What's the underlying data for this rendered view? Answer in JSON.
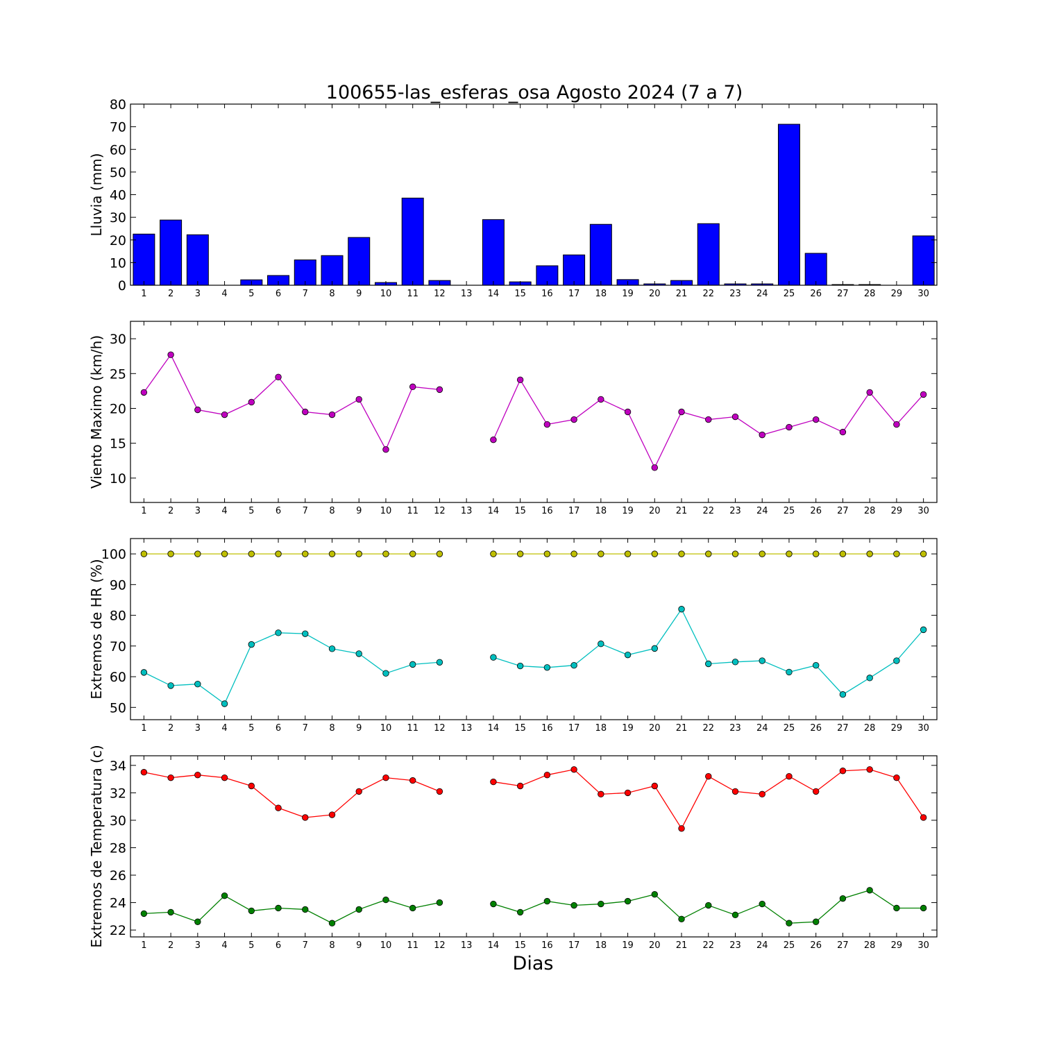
{
  "figure": {
    "title": "100655-las_esferas_osa Agosto 2024  (7 a 7)",
    "xlabel": "Dias"
  },
  "chart_data": [
    {
      "type": "bar",
      "ylabel": "Lluvia (mm)",
      "ylim": [
        0,
        80
      ],
      "yticks": [
        0,
        10,
        20,
        30,
        40,
        50,
        60,
        70,
        80
      ],
      "categories": [
        "1",
        "2",
        "3",
        "4",
        "5",
        "6",
        "7",
        "8",
        "9",
        "10",
        "11",
        "12",
        "13",
        "14",
        "15",
        "16",
        "17",
        "18",
        "19",
        "20",
        "21",
        "22",
        "23",
        "24",
        "25",
        "26",
        "27",
        "28",
        "29",
        "30"
      ],
      "values": [
        22.6,
        28.8,
        22.3,
        0,
        2.4,
        4.3,
        11.2,
        13.1,
        21.1,
        1.2,
        38.5,
        2.1,
        0,
        29.0,
        1.5,
        8.6,
        13.4,
        26.9,
        2.5,
        0.6,
        2.1,
        27.2,
        0.6,
        0.6,
        71.1,
        14.1,
        0.3,
        0.3,
        0,
        21.8
      ],
      "color": "#0000ff",
      "grid": false
    },
    {
      "type": "line",
      "ylabel": "Viento Maximo (km/h)",
      "ylim": [
        6.5,
        32.5
      ],
      "yticks": [
        10,
        15,
        20,
        25,
        30
      ],
      "x": [
        1,
        2,
        3,
        4,
        5,
        6,
        7,
        8,
        9,
        10,
        11,
        12,
        13,
        14,
        15,
        16,
        17,
        18,
        19,
        20,
        21,
        22,
        23,
        24,
        25,
        26,
        27,
        28,
        29,
        30
      ],
      "series": [
        {
          "color": "#bf00bf",
          "values": [
            22.3,
            27.7,
            19.8,
            19.1,
            20.9,
            24.5,
            19.5,
            19.1,
            21.3,
            14.1,
            23.1,
            22.7,
            null,
            15.5,
            24.1,
            17.7,
            18.4,
            21.3,
            19.5,
            11.5,
            19.5,
            18.4,
            18.8,
            16.2,
            17.3,
            18.4,
            16.6,
            22.3,
            17.7,
            22.0
          ]
        }
      ],
      "grid": false
    },
    {
      "type": "line",
      "ylabel": "Extremos de HR (%)",
      "ylim": [
        46,
        105
      ],
      "yticks": [
        50,
        60,
        70,
        80,
        90,
        100
      ],
      "x": [
        1,
        2,
        3,
        4,
        5,
        6,
        7,
        8,
        9,
        10,
        11,
        12,
        13,
        14,
        15,
        16,
        17,
        18,
        19,
        20,
        21,
        22,
        23,
        24,
        25,
        26,
        27,
        28,
        29,
        30
      ],
      "series": [
        {
          "color": "#bfbf00",
          "values": [
            100,
            100,
            100,
            100,
            100,
            100,
            100,
            100,
            100,
            100,
            100,
            100,
            null,
            100,
            100,
            100,
            100,
            100,
            100,
            100,
            100,
            100,
            100,
            100,
            100,
            100,
            100,
            100,
            100,
            100
          ]
        },
        {
          "color": "#00bfbf",
          "values": [
            61.4,
            57.1,
            57.6,
            51.2,
            70.5,
            74.3,
            74.0,
            69.1,
            67.5,
            61.1,
            64.0,
            64.7,
            null,
            66.3,
            63.5,
            63.0,
            63.7,
            70.7,
            67.1,
            69.2,
            82.0,
            64.2,
            64.8,
            65.2,
            61.5,
            63.7,
            54.2,
            59.6,
            65.2,
            75.3
          ]
        }
      ],
      "grid": false
    },
    {
      "type": "line",
      "ylabel": "Extremos de Temperatura (c)",
      "ylim": [
        21.5,
        34.7
      ],
      "yticks": [
        22,
        24,
        26,
        28,
        30,
        32,
        34
      ],
      "x": [
        1,
        2,
        3,
        4,
        5,
        6,
        7,
        8,
        9,
        10,
        11,
        12,
        13,
        14,
        15,
        16,
        17,
        18,
        19,
        20,
        21,
        22,
        23,
        24,
        25,
        26,
        27,
        28,
        29,
        30
      ],
      "series": [
        {
          "color": "#ff0000",
          "values": [
            33.5,
            33.1,
            33.3,
            33.1,
            32.5,
            30.9,
            30.2,
            30.4,
            32.1,
            33.1,
            32.9,
            32.1,
            null,
            32.8,
            32.5,
            33.3,
            33.7,
            31.9,
            32.0,
            32.5,
            29.4,
            33.2,
            32.1,
            31.9,
            33.2,
            32.1,
            33.6,
            33.7,
            33.1,
            30.2
          ]
        },
        {
          "color": "#008000",
          "values": [
            23.2,
            23.3,
            22.6,
            24.5,
            23.4,
            23.6,
            23.5,
            22.5,
            23.5,
            24.2,
            23.6,
            24.0,
            null,
            23.9,
            23.3,
            24.1,
            23.8,
            23.9,
            24.1,
            24.6,
            22.8,
            23.8,
            23.1,
            23.9,
            22.5,
            22.6,
            24.3,
            24.9,
            23.6,
            23.6
          ]
        }
      ],
      "grid": false
    }
  ]
}
